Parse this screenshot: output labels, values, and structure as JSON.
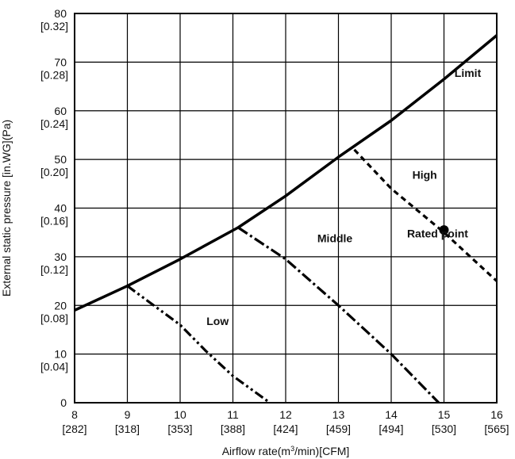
{
  "chart_data": {
    "type": "line",
    "title": "",
    "xlabel": "Airflow rate(m³/min)[CFM]",
    "xlabel_main": "Airflow rate(m",
    "xlabel_sup": "3",
    "xlabel_tail": "/min)[CFM]",
    "ylabel": "External static pressure  [in.WG](Pa)",
    "xlim": [
      8,
      16
    ],
    "ylim": [
      0,
      80
    ],
    "grid": true,
    "x_ticks": [
      {
        "value": 8,
        "label": "8",
        "sub": "[282]"
      },
      {
        "value": 9,
        "label": "9",
        "sub": "[318]"
      },
      {
        "value": 10,
        "label": "10",
        "sub": "[353]"
      },
      {
        "value": 11,
        "label": "11",
        "sub": "[388]"
      },
      {
        "value": 12,
        "label": "12",
        "sub": "[424]"
      },
      {
        "value": 13,
        "label": "13",
        "sub": "[459]"
      },
      {
        "value": 14,
        "label": "14",
        "sub": "[494]"
      },
      {
        "value": 15,
        "label": "15",
        "sub": "[530]"
      },
      {
        "value": 16,
        "label": "16",
        "sub": "[565]"
      }
    ],
    "y_ticks": [
      {
        "value": 0,
        "label": "0",
        "sub": ""
      },
      {
        "value": 10,
        "label": "10",
        "sub": "[0.04]"
      },
      {
        "value": 20,
        "label": "20",
        "sub": "[0.08]"
      },
      {
        "value": 30,
        "label": "30",
        "sub": "[0.12]"
      },
      {
        "value": 40,
        "label": "40",
        "sub": "[0.16]"
      },
      {
        "value": 50,
        "label": "50",
        "sub": "[0.20]"
      },
      {
        "value": 60,
        "label": "60",
        "sub": "[0.24]"
      },
      {
        "value": 70,
        "label": "70",
        "sub": "[0.28]"
      },
      {
        "value": 80,
        "label": "80",
        "sub": "[0.32]"
      }
    ],
    "series": [
      {
        "name": "Limit",
        "style": "solid",
        "x": [
          8,
          9,
          10,
          11.1,
          12,
          13,
          14,
          15,
          16
        ],
        "y": [
          19,
          24,
          29.5,
          36,
          42.5,
          50.5,
          58,
          66.5,
          75.5
        ]
      },
      {
        "name": "Low",
        "style": "dash-dot-dot",
        "x": [
          9,
          10,
          10.5,
          11,
          11.7
        ],
        "y": [
          24,
          16,
          10.5,
          5.5,
          0
        ]
      },
      {
        "name": "Middle",
        "style": "dash-dot",
        "x": [
          11.1,
          12,
          13,
          14,
          14.9
        ],
        "y": [
          36,
          29.5,
          20,
          10,
          0
        ]
      },
      {
        "name": "High",
        "style": "dashed",
        "x": [
          13.3,
          14,
          15,
          16
        ],
        "y": [
          52,
          44,
          35,
          25
        ]
      }
    ],
    "points": [
      {
        "name": "Rated point",
        "x": 15,
        "y": 35.5
      }
    ],
    "annotations": [
      {
        "text": "Limit",
        "x": 15.2,
        "y": 67
      },
      {
        "text": "High",
        "x": 14.4,
        "y": 46
      },
      {
        "text": "Rated point",
        "x": 14.3,
        "y": 34
      },
      {
        "text": "Middle",
        "x": 12.6,
        "y": 33
      },
      {
        "text": "Low",
        "x": 10.5,
        "y": 16
      }
    ]
  }
}
